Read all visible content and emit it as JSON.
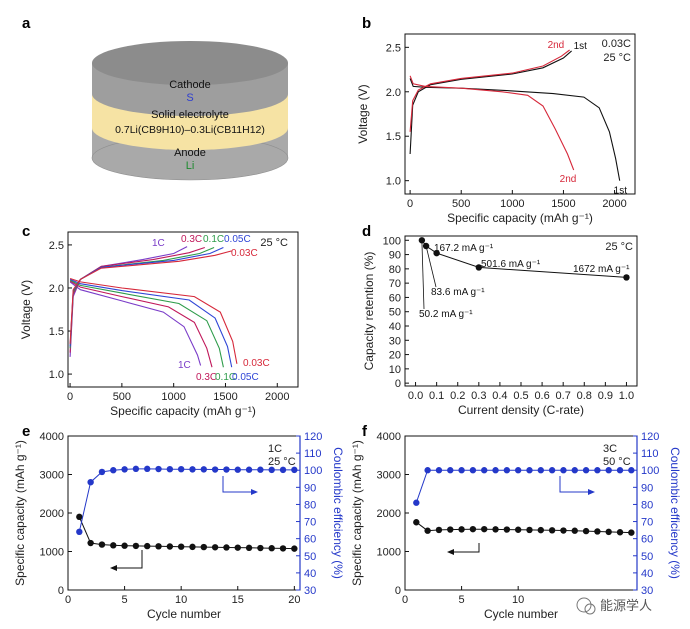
{
  "panels": {
    "a": {
      "letter": "a",
      "layers": {
        "cathode": {
          "label": "Cathode",
          "material": "S"
        },
        "electrolyte": {
          "label": "Solid electrolyte",
          "formula": "0.7Li(CB9H10)–0.3Li(CB11H12)"
        },
        "anode": {
          "label": "Anode",
          "material": "Li"
        }
      },
      "colors": {
        "cathode": "#9e9e9e",
        "electrolyte": "#f6e3a4",
        "anode": "#a9a9a9",
        "s_text": "#2f3fd0",
        "li_text": "#1d8a2e"
      }
    }
  },
  "watermark": {
    "text": "能源学人"
  },
  "chart_data": [
    {
      "id": "b",
      "letter": "b",
      "type": "line",
      "xlabel": "Specific capacity (mAh g⁻¹)",
      "ylabel": "Voltage (V)",
      "xlim": [
        -50,
        2200
      ],
      "ylim": [
        0.85,
        2.65
      ],
      "xticks": [
        0,
        500,
        1000,
        1500,
        2000
      ],
      "yticks": [
        1.0,
        1.5,
        2.0,
        2.5
      ],
      "conditions": [
        "0.03C",
        "25 °C"
      ],
      "series": [
        {
          "name": "1st",
          "color": "#111111",
          "labels": {
            "charge": "1st",
            "discharge": "1st"
          },
          "discharge": [
            [
              0,
              2.15
            ],
            [
              30,
              2.06
            ],
            [
              150,
              2.05
            ],
            [
              500,
              2.04
            ],
            [
              1000,
              2.01
            ],
            [
              1400,
              1.98
            ],
            [
              1700,
              1.94
            ],
            [
              1850,
              1.82
            ],
            [
              1950,
              1.55
            ],
            [
              2010,
              1.25
            ],
            [
              2050,
              1.0
            ]
          ],
          "charge": [
            [
              0,
              1.3
            ],
            [
              25,
              1.85
            ],
            [
              80,
              2.0
            ],
            [
              200,
              2.08
            ],
            [
              500,
              2.14
            ],
            [
              1000,
              2.2
            ],
            [
              1300,
              2.27
            ],
            [
              1500,
              2.38
            ],
            [
              1580,
              2.46
            ]
          ]
        },
        {
          "name": "2nd",
          "color": "#d6283a",
          "labels": {
            "charge": "2nd",
            "discharge": "2nd"
          },
          "discharge": [
            [
              0,
              2.18
            ],
            [
              30,
              2.09
            ],
            [
              150,
              2.06
            ],
            [
              500,
              2.04
            ],
            [
              900,
              2.0
            ],
            [
              1150,
              1.96
            ],
            [
              1300,
              1.84
            ],
            [
              1420,
              1.58
            ],
            [
              1540,
              1.3
            ],
            [
              1600,
              1.12
            ]
          ],
          "charge": [
            [
              0,
              1.55
            ],
            [
              25,
              1.9
            ],
            [
              80,
              2.02
            ],
            [
              200,
              2.09
            ],
            [
              500,
              2.15
            ],
            [
              1000,
              2.21
            ],
            [
              1300,
              2.29
            ],
            [
              1480,
              2.4
            ],
            [
              1560,
              2.47
            ]
          ]
        }
      ]
    },
    {
      "id": "c",
      "letter": "c",
      "type": "line",
      "xlabel": "Specific capacity (mAh g⁻¹)",
      "ylabel": "Voltage (V)",
      "xlim": [
        -20,
        2200
      ],
      "ylim": [
        0.85,
        2.65
      ],
      "xticks": [
        0,
        500,
        1000,
        1500,
        2000
      ],
      "yticks": [
        1.0,
        1.5,
        2.0,
        2.5
      ],
      "conditions": [
        "25 °C"
      ],
      "series": [
        {
          "name": "1C",
          "color": "#7a3cc8",
          "labels": {
            "charge": "1C",
            "discharge": "1C"
          },
          "discharge": [
            [
              0,
              2.07
            ],
            [
              100,
              1.98
            ],
            [
              500,
              1.85
            ],
            [
              900,
              1.72
            ],
            [
              1100,
              1.55
            ],
            [
              1230,
              1.22
            ],
            [
              1260,
              1.1
            ]
          ],
          "charge": [
            [
              0,
              1.2
            ],
            [
              30,
              1.9
            ],
            [
              100,
              2.1
            ],
            [
              300,
              2.25
            ],
            [
              700,
              2.33
            ],
            [
              1000,
              2.4
            ],
            [
              1130,
              2.48
            ]
          ]
        },
        {
          "name": "0.3C",
          "color": "#c0185a",
          "labels": {
            "charge": "0.3C",
            "discharge": "0.3C"
          },
          "discharge": [
            [
              0,
              2.08
            ],
            [
              100,
              2.01
            ],
            [
              500,
              1.9
            ],
            [
              950,
              1.78
            ],
            [
              1200,
              1.6
            ],
            [
              1320,
              1.3
            ],
            [
              1370,
              1.08
            ]
          ],
          "charge": [
            [
              0,
              1.25
            ],
            [
              30,
              1.93
            ],
            [
              100,
              2.1
            ],
            [
              300,
              2.25
            ],
            [
              800,
              2.33
            ],
            [
              1150,
              2.41
            ],
            [
              1300,
              2.47
            ]
          ]
        },
        {
          "name": "0.1C",
          "color": "#2e9c4a",
          "labels": {
            "charge": "0.1C",
            "discharge": "0.1C"
          },
          "discharge": [
            [
              0,
              2.09
            ],
            [
              100,
              2.03
            ],
            [
              500,
              1.94
            ],
            [
              1050,
              1.82
            ],
            [
              1320,
              1.62
            ],
            [
              1440,
              1.3
            ],
            [
              1480,
              1.08
            ]
          ],
          "charge": [
            [
              0,
              1.3
            ],
            [
              30,
              1.95
            ],
            [
              100,
              2.1
            ],
            [
              300,
              2.24
            ],
            [
              900,
              2.32
            ],
            [
              1250,
              2.4
            ],
            [
              1390,
              2.47
            ]
          ]
        },
        {
          "name": "0.05C",
          "color": "#2f45d6",
          "labels": {
            "charge": "0.05C",
            "discharge": "0.05C"
          },
          "discharge": [
            [
              0,
              2.1
            ],
            [
              100,
              2.05
            ],
            [
              500,
              1.97
            ],
            [
              1150,
              1.86
            ],
            [
              1400,
              1.65
            ],
            [
              1520,
              1.32
            ],
            [
              1560,
              1.08
            ]
          ],
          "charge": [
            [
              0,
              1.32
            ],
            [
              30,
              1.97
            ],
            [
              100,
              2.1
            ],
            [
              300,
              2.24
            ],
            [
              1000,
              2.32
            ],
            [
              1350,
              2.4
            ],
            [
              1480,
              2.47
            ]
          ]
        },
        {
          "name": "0.03C",
          "color": "#d6283a",
          "labels": {
            "charge": "0.03C",
            "discharge": "0.03C"
          },
          "discharge": [
            [
              0,
              2.11
            ],
            [
              100,
              2.07
            ],
            [
              500,
              2.0
            ],
            [
              1200,
              1.9
            ],
            [
              1450,
              1.72
            ],
            [
              1570,
              1.38
            ],
            [
              1610,
              1.12
            ]
          ],
          "charge": [
            [
              0,
              1.35
            ],
            [
              30,
              1.98
            ],
            [
              100,
              2.1
            ],
            [
              300,
              2.23
            ],
            [
              1050,
              2.31
            ],
            [
              1400,
              2.38
            ],
            [
              1560,
              2.43
            ]
          ]
        }
      ]
    },
    {
      "id": "d",
      "letter": "d",
      "type": "scatter",
      "xlabel": "Current density (C-rate)",
      "ylabel": "Capacity retention (%)",
      "xlim": [
        -0.05,
        1.05
      ],
      "ylim": [
        -2,
        103
      ],
      "xticks": [
        0.0,
        0.1,
        0.2,
        0.3,
        0.4,
        0.5,
        0.6,
        0.7,
        0.8,
        0.9,
        1.0
      ],
      "yticks": [
        0,
        10,
        20,
        30,
        40,
        50,
        60,
        70,
        80,
        90,
        100
      ],
      "conditions": [
        "25 °C"
      ],
      "x": [
        0.03,
        0.05,
        0.1,
        0.3,
        1.0
      ],
      "values": [
        100,
        96,
        91,
        81,
        74
      ],
      "annotations": [
        "50.2 mA g⁻¹",
        "83.6 mA g⁻¹",
        "167.2 mA g⁻¹",
        "501.6 mA g⁻¹",
        "1672 mA g⁻¹"
      ]
    },
    {
      "id": "e",
      "letter": "e",
      "type": "scatter",
      "xlabel": "Cycle number",
      "ylabel": "Specific capacity (mAh g⁻¹)",
      "y2label": "Coulombic efficiency (%)",
      "xlim": [
        0,
        20.5
      ],
      "ylim": [
        0,
        4000
      ],
      "y2lim": [
        30,
        120
      ],
      "xticks": [
        0,
        5,
        10,
        15,
        20
      ],
      "yticks": [
        0,
        1000,
        2000,
        3000,
        4000
      ],
      "y2ticks": [
        30,
        40,
        50,
        60,
        70,
        80,
        90,
        100,
        110,
        120
      ],
      "conditions": [
        "1C",
        "25 °C"
      ],
      "x": [
        1,
        2,
        3,
        4,
        5,
        6,
        7,
        8,
        9,
        10,
        11,
        12,
        13,
        14,
        15,
        16,
        17,
        18,
        19,
        20
      ],
      "series": [
        {
          "name": "Specific capacity",
          "axis": "left",
          "color": "#111111",
          "values": [
            1900,
            1220,
            1180,
            1160,
            1150,
            1145,
            1140,
            1135,
            1130,
            1125,
            1120,
            1115,
            1110,
            1105,
            1100,
            1095,
            1090,
            1085,
            1080,
            1075
          ]
        },
        {
          "name": "Coulombic efficiency",
          "axis": "right",
          "color": "#2438c9",
          "values": [
            64,
            93,
            99,
            100,
            100.5,
            100.8,
            100.8,
            100.7,
            100.6,
            100.6,
            100.5,
            100.5,
            100.4,
            100.4,
            100.3,
            100.3,
            100.3,
            100.2,
            100.2,
            100.2
          ]
        }
      ]
    },
    {
      "id": "f",
      "letter": "f",
      "type": "scatter",
      "xlabel": "Cycle number",
      "ylabel": "Specific capacity (mAh g⁻¹)",
      "y2label": "Coulombic efficiency (%)",
      "xlim": [
        0,
        20.5
      ],
      "ylim": [
        0,
        4000
      ],
      "y2lim": [
        30,
        120
      ],
      "xticks": [
        0,
        5,
        10
      ],
      "yticks": [
        0,
        1000,
        2000,
        3000,
        4000
      ],
      "y2ticks": [
        30,
        40,
        50,
        60,
        70,
        80,
        90,
        100,
        110,
        120
      ],
      "conditions": [
        "3C",
        "50 °C"
      ],
      "x": [
        1,
        2,
        3,
        4,
        5,
        6,
        7,
        8,
        9,
        10,
        11,
        12,
        13,
        14,
        15,
        16,
        17,
        18,
        19,
        20
      ],
      "series": [
        {
          "name": "Specific capacity",
          "axis": "left",
          "color": "#111111",
          "values": [
            1760,
            1540,
            1560,
            1570,
            1575,
            1580,
            1580,
            1575,
            1570,
            1565,
            1560,
            1555,
            1550,
            1545,
            1540,
            1530,
            1520,
            1510,
            1500,
            1490
          ]
        },
        {
          "name": "Coulombic efficiency",
          "axis": "right",
          "color": "#2438c9",
          "values": [
            81,
            100,
            100,
            100,
            100,
            100,
            100,
            100,
            100,
            100,
            100,
            100,
            100,
            100,
            100,
            100,
            100,
            100,
            100,
            100
          ]
        }
      ]
    }
  ]
}
